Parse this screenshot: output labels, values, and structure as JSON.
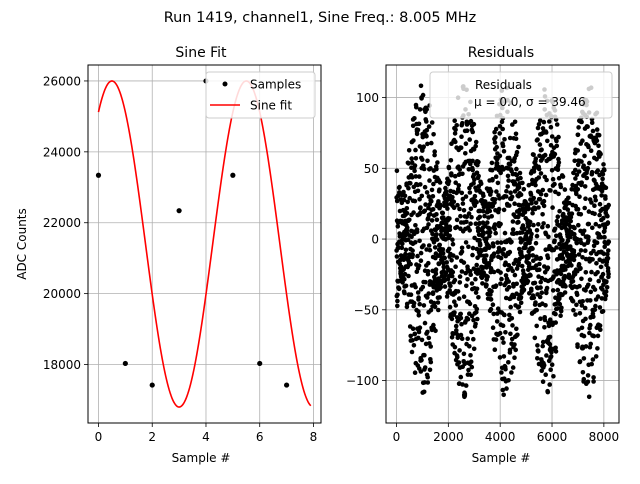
{
  "figure": {
    "suptitle": "Run 1419, channel1, Sine Freq.: 8.005 MHz"
  },
  "chart_data": [
    {
      "type": "scatter",
      "title": "Sine Fit",
      "xlabel": "Sample #",
      "ylabel": "ADC Counts",
      "xlim": [
        -0.39,
        8.28
      ],
      "ylim": [
        16350,
        26450
      ],
      "xticks": [
        0,
        2,
        4,
        6,
        8
      ],
      "yticks": [
        18000,
        20000,
        22000,
        24000,
        26000
      ],
      "grid": true,
      "legend": "top-right",
      "series": [
        {
          "name": "Samples",
          "marker": "dot",
          "color": "#000000",
          "x": [
            0,
            1,
            2,
            3,
            4,
            5,
            6,
            7
          ],
          "y": [
            23340,
            18030,
            17420,
            22340,
            26000,
            23340,
            18030,
            17420
          ]
        },
        {
          "name": "Sine fit",
          "line": true,
          "color": "#ff0000",
          "model": {
            "amplitude": 4600,
            "offset": 21400,
            "period": 5,
            "phase_deg": 54,
            "x_range": [
              0,
              7.9
            ]
          }
        }
      ]
    },
    {
      "type": "scatter",
      "title": "Residuals",
      "xlabel": "Sample #",
      "ylabel": "",
      "xlim": [
        -405,
        8584
      ],
      "ylim": [
        -130,
        123
      ],
      "xticks": [
        0,
        2000,
        4000,
        6000,
        8000
      ],
      "yticks": [
        -100,
        -50,
        0,
        50,
        100
      ],
      "grid": true,
      "legend": "top-right",
      "legend_lines": [
        "Residuals",
        "μ = 0.0, σ = 39.46"
      ],
      "series": [
        {
          "name": "Residuals",
          "marker": "dot",
          "color": "#000000",
          "n_points": 8192,
          "mean": 0.0,
          "std": 39.46,
          "envelope_period_samples": 1600,
          "envelope_min_amplitude": 30,
          "envelope_max_amplitude": 112,
          "envelope_peaks": [
            1000,
            2600,
            4200,
            5800,
            7400
          ]
        }
      ]
    }
  ]
}
